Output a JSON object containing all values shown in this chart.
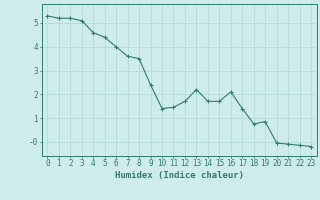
{
  "x": [
    0,
    1,
    2,
    3,
    4,
    5,
    6,
    7,
    8,
    9,
    10,
    11,
    12,
    13,
    14,
    15,
    16,
    17,
    18,
    19,
    20,
    21,
    22,
    23
  ],
  "y": [
    5.3,
    5.2,
    5.2,
    5.1,
    4.6,
    4.4,
    4.0,
    3.6,
    3.5,
    2.4,
    1.4,
    1.45,
    1.7,
    2.2,
    1.7,
    1.7,
    2.1,
    1.4,
    0.75,
    0.85,
    -0.05,
    -0.1,
    -0.15,
    -0.2
  ],
  "line_color": "#2e7d6e",
  "marker": "+",
  "marker_size": 3,
  "bg_color": "#ceecea",
  "grid_color": "#b0d8d4",
  "xlabel": "Humidex (Indice chaleur)",
  "xlabel_fontsize": 6.5,
  "tick_fontsize": 5.5,
  "ylim": [
    -0.6,
    5.8
  ],
  "xlim": [
    -0.5,
    23.5
  ],
  "yticks": [
    0,
    1,
    2,
    3,
    4,
    5
  ],
  "ytick_labels": [
    "-0",
    "1",
    "2",
    "3",
    "4",
    "5"
  ],
  "xtick_labels": [
    "0",
    "1",
    "2",
    "3",
    "4",
    "5",
    "6",
    "7",
    "8",
    "9",
    "10",
    "11",
    "12",
    "13",
    "14",
    "15",
    "16",
    "17",
    "18",
    "19",
    "20",
    "21",
    "22",
    "23"
  ]
}
